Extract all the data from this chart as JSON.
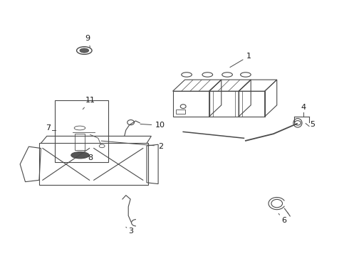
{
  "background_color": "#ffffff",
  "line_color": "#4a4a4a",
  "text_color": "#1a1a1a",
  "fig_width": 4.9,
  "fig_height": 3.6,
  "dpi": 100
}
